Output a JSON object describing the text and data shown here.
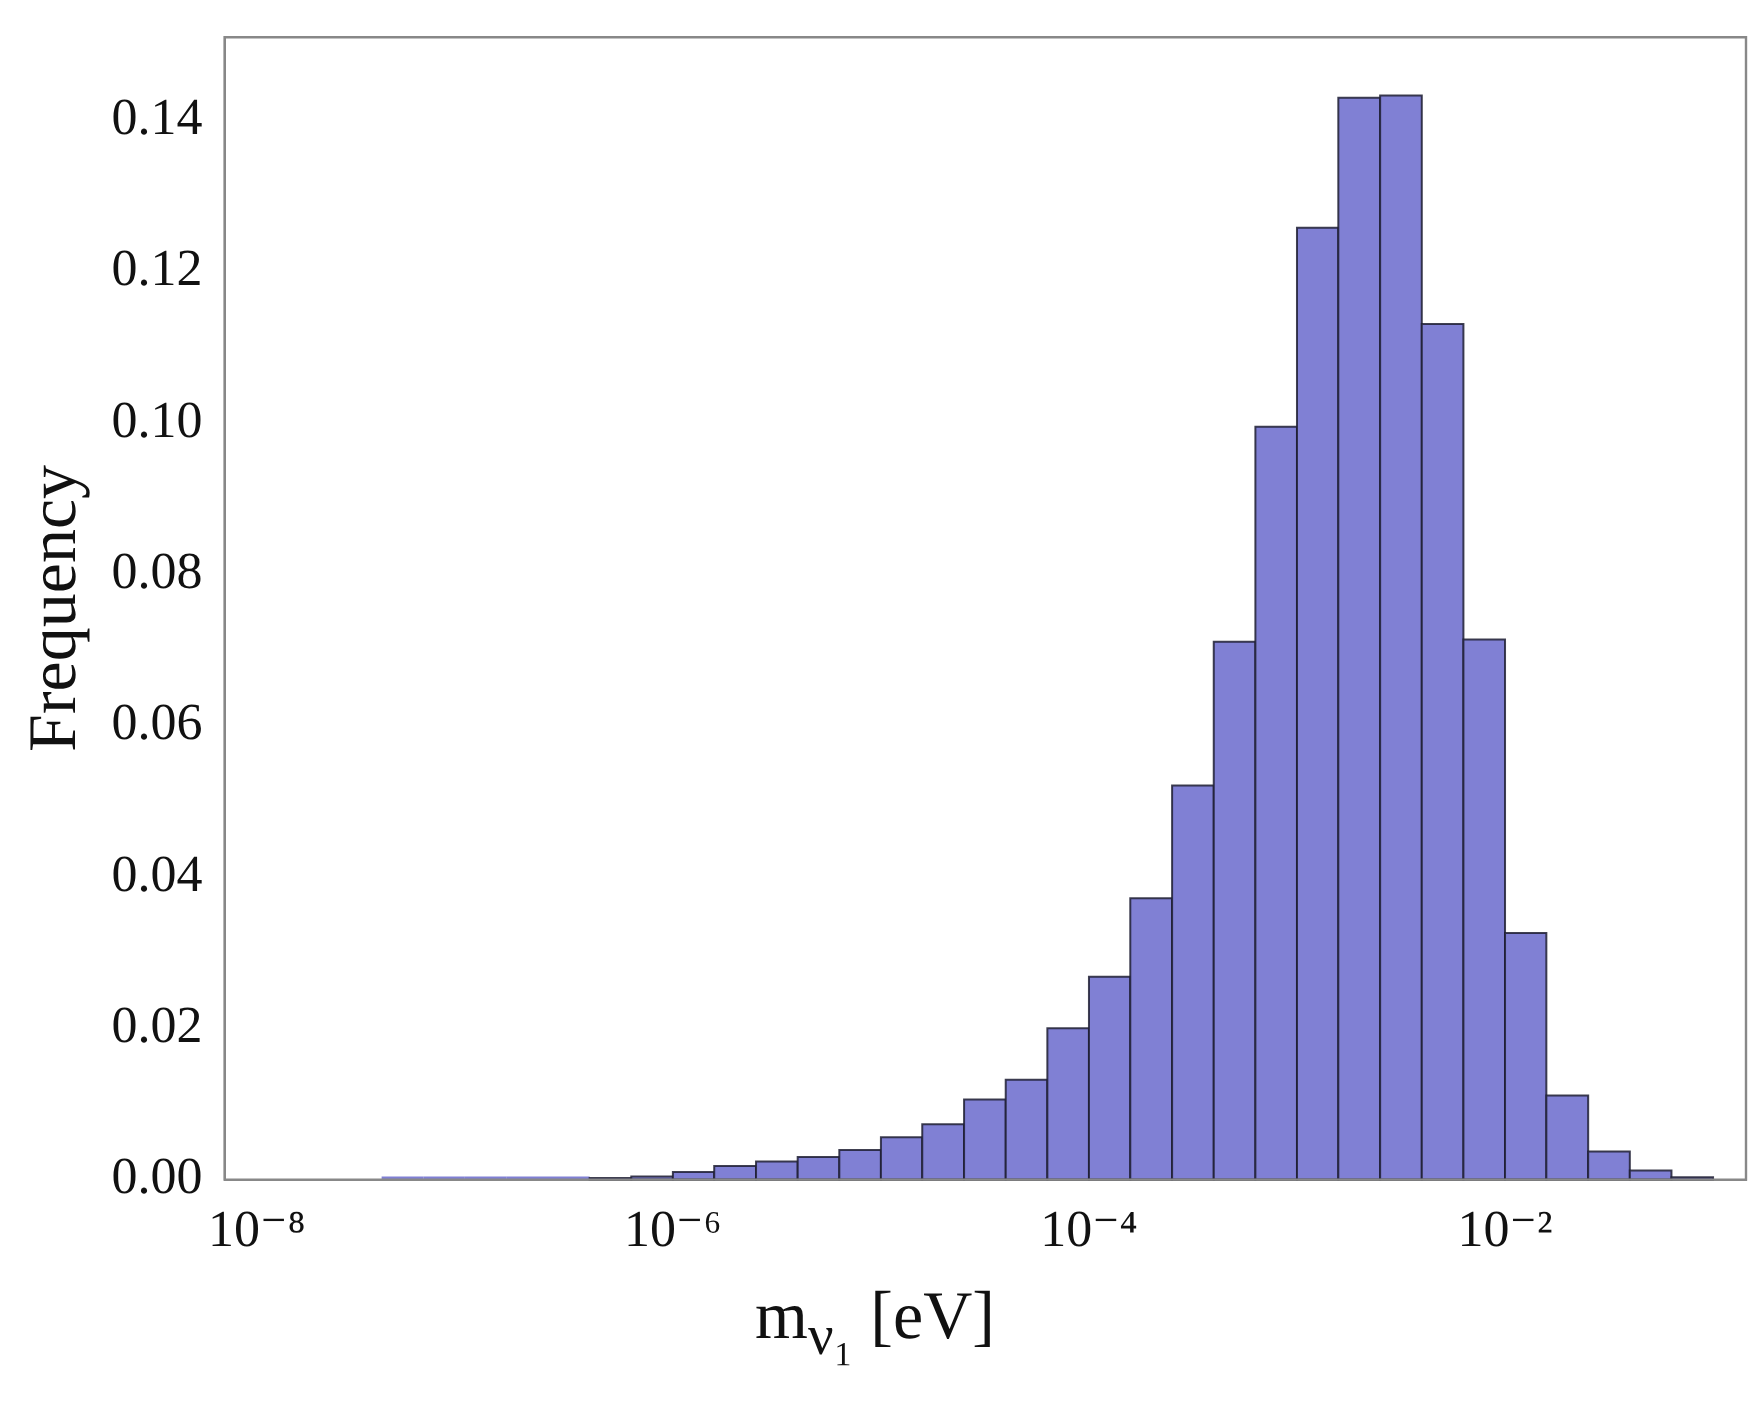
{
  "chart_data": {
    "type": "histogram",
    "xlabel": "m$_{ν₁}$ [eV]",
    "ylabel": "Frequency",
    "log": "x",
    "color": "#8080d4",
    "bins": [
      3.98e-08,
      6.31e-08,
      1e-07,
      1.58e-07,
      2.51e-07,
      3.98e-07,
      6.31e-07,
      1e-06,
      1.58e-06,
      2.51e-06,
      3.98e-06,
      6.31e-06,
      1e-05,
      1.58e-05,
      2.51e-05,
      3.98e-05,
      6.31e-05,
      0.0001,
      0.000158,
      0.000251,
      0.000398,
      0.000631,
      0.001,
      0.00158,
      0.00251,
      0.00398,
      0.00631,
      0.01,
      0.0158,
      0.0251,
      0.0398,
      0.0631,
      0.1
    ],
    "values": [
      0,
      0,
      0,
      0,
      0,
      0.0002,
      0.0004,
      0.001,
      0.0018,
      0.0024,
      0.003,
      0.0039,
      0.0056,
      0.0073,
      0.0106,
      0.0132,
      0.02,
      0.0268,
      0.0372,
      0.0521,
      0.0711,
      0.0995,
      0.1258,
      0.143,
      0.1433,
      0.1131,
      0.0714,
      0.0326,
      0.0111,
      0.0037,
      0.0012,
      0.0003
    ],
    "xlim": [
      7.2e-09,
      0.144
    ],
    "xticks": [
      {
        "value": 1e-08,
        "label": "10⁻⁸"
      },
      {
        "value": 1e-06,
        "label": "10⁻⁶"
      },
      {
        "value": 0.0001,
        "label": "10⁻⁴"
      },
      {
        "value": 0.01,
        "label": "10⁻²"
      }
    ],
    "ylim": [
      0,
      0.151
    ],
    "yticks": [
      {
        "value": 0,
        "label": "0.00"
      },
      {
        "value": 0.02,
        "label": "0.02"
      },
      {
        "value": 0.04,
        "label": "0.04"
      },
      {
        "value": 0.06,
        "label": "0.06"
      },
      {
        "value": 0.08,
        "label": "0.08"
      },
      {
        "value": 0.1,
        "label": "0.10"
      },
      {
        "value": 0.12,
        "label": "0.12"
      },
      {
        "value": 0.14,
        "label": "0.14"
      }
    ],
    "grid": false,
    "legend": false
  }
}
